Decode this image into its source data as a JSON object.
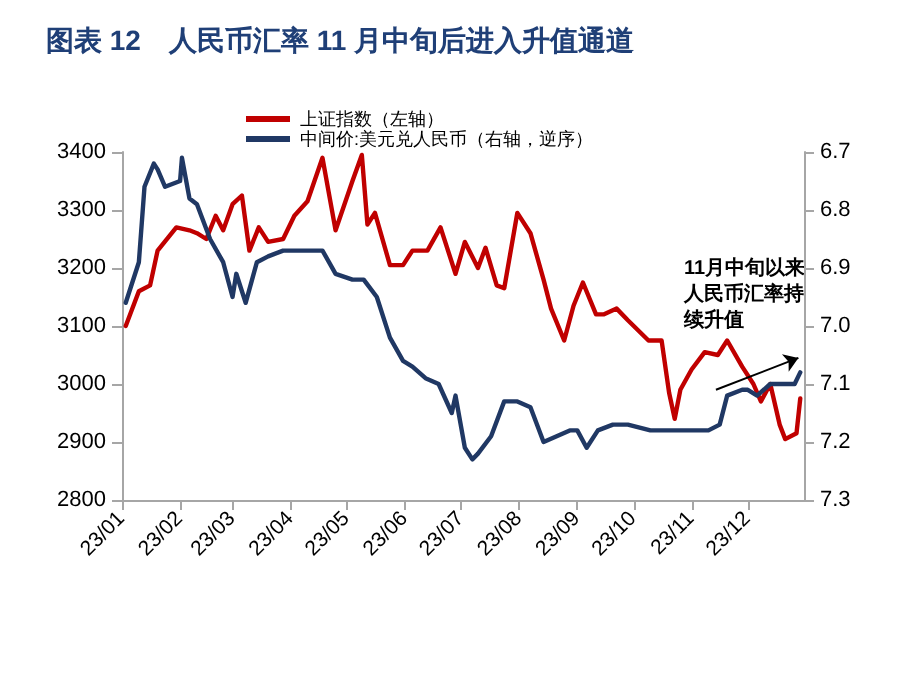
{
  "chart_data": {
    "type": "line",
    "title": "图表 12　人民币汇率 11 月中旬后进入升值通道",
    "xlim": [
      "--01-01",
      "--12-31"
    ],
    "xticks": [
      {
        "value": "--01-01",
        "label": "23/01"
      },
      {
        "value": "--02-01",
        "label": "23/02"
      },
      {
        "value": "--03-01",
        "label": "23/03"
      },
      {
        "value": "--04-01",
        "label": "23/04"
      },
      {
        "value": "--05-01",
        "label": "23/05"
      },
      {
        "value": "--06-01",
        "label": "23/06"
      },
      {
        "value": "--07-01",
        "label": "23/07"
      },
      {
        "value": "--08-01",
        "label": "23/08"
      },
      {
        "value": "--09-01",
        "label": "23/09"
      },
      {
        "value": "--10-01",
        "label": "23/10"
      },
      {
        "value": "--11-01",
        "label": "23/11"
      },
      {
        "value": "--12-01",
        "label": "23/12"
      }
    ],
    "ylim": [
      2800,
      3400
    ],
    "yticks": [
      2800,
      2900,
      3000,
      3100,
      3200,
      3300,
      3400
    ],
    "y2lim": [
      7.3,
      6.7
    ],
    "y2ticks": [
      6.7,
      6.8,
      6.9,
      {
        "value": 7.0,
        "label": "7.0"
      },
      7.1,
      7.2,
      7.3
    ],
    "grid": false,
    "legend": "top",
    "marker": "none",
    "line_style": "solid",
    "annotations": [
      "11月中旬以来人民币汇率持续升值"
    ],
    "series": [
      {
        "name": "上证指数（左轴）",
        "color": "#c00000",
        "x": [
          "--01-03",
          "--01-10",
          "--01-16",
          "--01-20",
          "--01-30",
          "--02-06",
          "--02-10",
          "--02-15",
          "--02-20",
          "--02-24",
          "--03-01",
          "--03-06",
          "--03-10",
          "--03-15",
          "--03-20",
          "--03-28",
          "--04-03",
          "--04-10",
          "--04-18",
          "--04-25",
          "--05-04",
          "--05-09",
          "--05-12",
          "--05-16",
          "--05-24",
          "--05-31",
          "--06-05",
          "--06-13",
          "--06-20",
          "--06-28",
          "--07-03",
          "--07-10",
          "--07-14",
          "--07-20",
          "--07-24",
          "--07-31",
          "--08-07",
          "--08-14",
          "--08-18",
          "--08-25",
          "--08-30",
          "--09-04",
          "--09-11",
          "--09-15",
          "--09-22",
          "--09-28",
          "--10-09",
          "--10-16",
          "--10-20",
          "--10-23",
          "--10-26",
          "--11-01",
          "--11-08",
          "--11-15",
          "--11-20",
          "--11-28",
          "--12-04",
          "--12-08",
          "--12-13",
          "--12-18",
          "--12-21",
          "--12-27",
          "--12-29"
        ],
        "values": [
          3100,
          3160,
          3170,
          3230,
          3270,
          3265,
          3260,
          3250,
          3290,
          3265,
          3310,
          3325,
          3230,
          3270,
          3245,
          3250,
          3290,
          3315,
          3390,
          3265,
          3350,
          3395,
          3275,
          3295,
          3205,
          3205,
          3230,
          3230,
          3270,
          3190,
          3245,
          3200,
          3235,
          3170,
          3165,
          3295,
          3260,
          3180,
          3130,
          3075,
          3135,
          3175,
          3120,
          3120,
          3130,
          3110,
          3075,
          3075,
          2985,
          2940,
          2990,
          3025,
          3055,
          3050,
          3075,
          3030,
          3000,
          2970,
          3000,
          2930,
          2905,
          2915,
          2975
        ]
      },
      {
        "name": "中间价:美元兑人民币（右轴，逆序）",
        "color": "#203864",
        "axis": "y2",
        "x": [
          "--01-03",
          "--01-10",
          "--01-13",
          "--01-18",
          "--01-20",
          "--01-24",
          "--02-01",
          "--02-02",
          "--02-06",
          "--02-10",
          "--02-17",
          "--02-24",
          "--03-01",
          "--03-03",
          "--03-08",
          "--03-14",
          "--03-20",
          "--03-28",
          "--04-03",
          "--04-10",
          "--04-18",
          "--04-25",
          "--05-04",
          "--05-10",
          "--05-17",
          "--05-24",
          "--05-31",
          "--06-05",
          "--06-12",
          "--06-19",
          "--06-26",
          "--06-28",
          "--07-03",
          "--07-07",
          "--07-10",
          "--07-17",
          "--07-24",
          "--07-31",
          "--08-07",
          "--08-14",
          "--08-21",
          "--08-28",
          "--09-01",
          "--09-06",
          "--09-12",
          "--09-20",
          "--09-28",
          "--10-10",
          "--10-20",
          "--11-01",
          "--11-10",
          "--11-16",
          "--11-20",
          "--11-28",
          "--12-01",
          "--12-06",
          "--12-13",
          "--12-20",
          "--12-26",
          "--12-29"
        ],
        "values": [
          6.96,
          6.89,
          6.76,
          6.72,
          6.73,
          6.76,
          6.75,
          6.71,
          6.78,
          6.79,
          6.85,
          6.89,
          6.95,
          6.91,
          6.96,
          6.89,
          6.88,
          6.87,
          6.87,
          6.87,
          6.87,
          6.91,
          6.92,
          6.92,
          6.95,
          7.02,
          7.06,
          7.07,
          7.09,
          7.1,
          7.15,
          7.12,
          7.21,
          7.23,
          7.22,
          7.19,
          7.13,
          7.13,
          7.14,
          7.2,
          7.19,
          7.18,
          7.18,
          7.21,
          7.18,
          7.17,
          7.17,
          7.18,
          7.18,
          7.18,
          7.18,
          7.17,
          7.12,
          7.11,
          7.11,
          7.12,
          7.1,
          7.1,
          7.1,
          7.08
        ]
      }
    ]
  }
}
